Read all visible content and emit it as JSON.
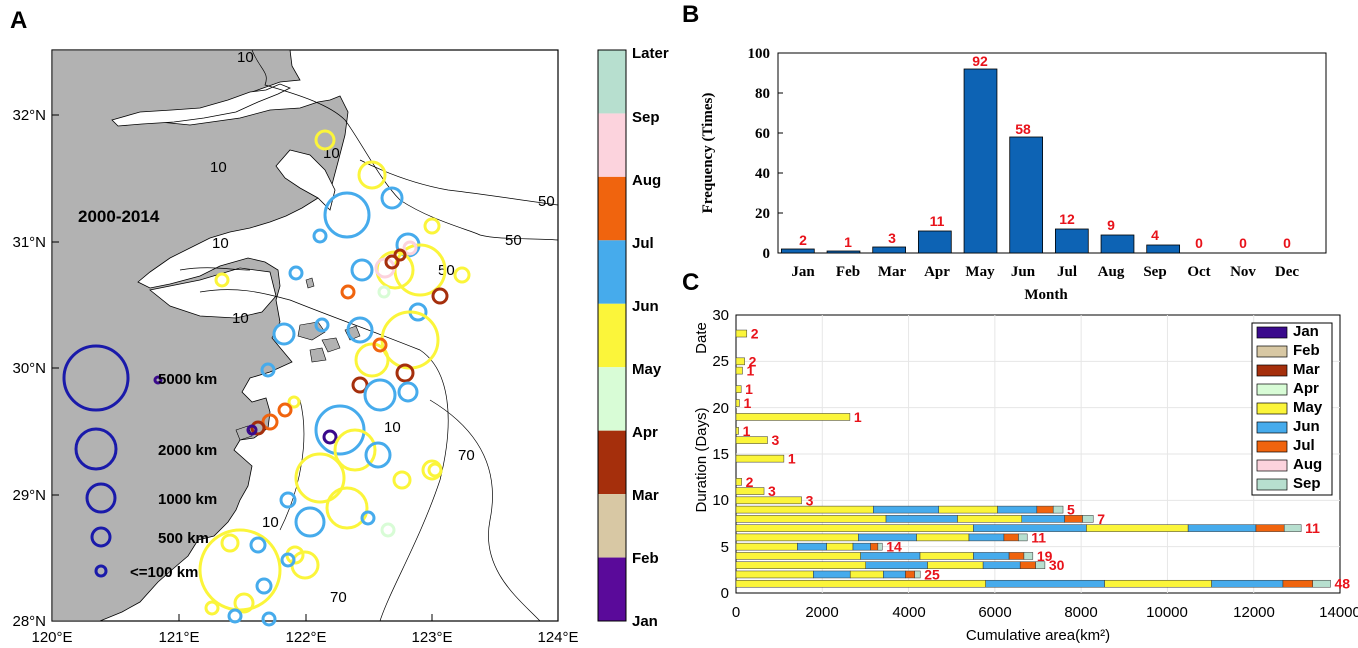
{
  "panel_labels": {
    "a": "A",
    "b": "B",
    "c": "C"
  },
  "chart_data": [
    {
      "type": "map",
      "period_label": "2000-2014",
      "lon_ticks": [
        "120°E",
        "121°E",
        "122°E",
        "123°E",
        "124°E"
      ],
      "lat_ticks": [
        "28°N",
        "29°N",
        "30°N",
        "31°N",
        "32°N"
      ],
      "xlim": [
        120,
        124
      ],
      "ylim": [
        28,
        32.5
      ],
      "contour_labels": [
        "10",
        "10",
        "10",
        "10",
        "10",
        "10",
        "50",
        "50",
        "50",
        "70",
        "70",
        "10"
      ],
      "size_legend": [
        "5000 km",
        "2000 km",
        "1000 km",
        "500 km",
        "<=100 km"
      ],
      "colorbar": {
        "labels": [
          "Later",
          "Sep",
          "Aug",
          "Jul",
          "Jun",
          "May",
          "Apr",
          "Mar",
          "Feb",
          "Jan"
        ],
        "colors": [
          "#b7dfcf",
          "#fcd3dd",
          "#f0640e",
          "#46abec",
          "#fbf53a",
          "#d8fcd6",
          "#a52f0c",
          "#d8c8a4",
          "#5a0a9a"
        ]
      }
    },
    {
      "type": "bar",
      "categories": [
        "Jan",
        "Feb",
        "Mar",
        "Apr",
        "May",
        "Jun",
        "Jul",
        "Aug",
        "Sep",
        "Oct",
        "Nov",
        "Dec"
      ],
      "values": [
        2,
        1,
        3,
        11,
        92,
        58,
        12,
        9,
        4,
        0,
        0,
        0
      ],
      "value_labels": [
        "2",
        "1",
        "3",
        "11",
        "92",
        "58",
        "12",
        "9",
        "4",
        "0",
        "0",
        "0"
      ],
      "xlabel": "Month",
      "ylabel": "Frequency (Times)",
      "ylim": [
        0,
        100
      ],
      "yticks": [
        "0",
        "20",
        "40",
        "60",
        "80",
        "100"
      ],
      "bar_color": "#0d63b4"
    },
    {
      "type": "bar-stacked-horizontal",
      "xlabel": "Cumulative area(km²)",
      "ylabel_main": "Duration (Days)",
      "ylabel_top": "Date",
      "xlim": [
        0,
        14000
      ],
      "ylim": [
        0,
        30
      ],
      "xticks": [
        "0",
        "2000",
        "4000",
        "6000",
        "8000",
        "10000",
        "12000",
        "14000"
      ],
      "yticks": [
        "0",
        "5",
        "10",
        "15",
        "20",
        "25",
        "30"
      ],
      "legend": [
        {
          "label": "Jan",
          "color": "#3a0a8c"
        },
        {
          "label": "Feb",
          "color": "#d8c8a4"
        },
        {
          "label": "Mar",
          "color": "#a52f0c"
        },
        {
          "label": "Apr",
          "color": "#d8fcd6"
        },
        {
          "label": "May",
          "color": "#fbf53a"
        },
        {
          "label": "Jun",
          "color": "#46abec"
        },
        {
          "label": "Jul",
          "color": "#f0640e"
        },
        {
          "label": "Aug",
          "color": "#fcd3dd"
        },
        {
          "label": "Sep",
          "color": "#b7dfcf"
        }
      ],
      "rows": [
        {
          "duration": 28,
          "total": 250,
          "count": "2"
        },
        {
          "duration": 25,
          "total": 200,
          "count": "2"
        },
        {
          "duration": 24,
          "total": 150,
          "count": "1"
        },
        {
          "duration": 22,
          "total": 120,
          "count": "1"
        },
        {
          "duration": 20.5,
          "total": 80,
          "count": "1"
        },
        {
          "duration": 19,
          "total": 2640,
          "count": "1"
        },
        {
          "duration": 17.5,
          "total": 60,
          "count": "1"
        },
        {
          "duration": 16.5,
          "total": 730,
          "count": "3"
        },
        {
          "duration": 14.5,
          "total": 1110,
          "count": "1"
        },
        {
          "duration": 12,
          "total": 130,
          "count": "2"
        },
        {
          "duration": 11,
          "total": 650,
          "count": "3"
        },
        {
          "duration": 10,
          "total": 1520,
          "count": "3"
        },
        {
          "duration": 9,
          "total": 7580,
          "count": "5"
        },
        {
          "duration": 8,
          "total": 8280,
          "count": "7"
        },
        {
          "duration": 7,
          "total": 13100,
          "count": "11"
        },
        {
          "duration": 6,
          "total": 6750,
          "count": "11"
        },
        {
          "duration": 5,
          "total": 3390,
          "count": "14"
        },
        {
          "duration": 4,
          "total": 6880,
          "count": "19"
        },
        {
          "duration": 3,
          "total": 7160,
          "count": "30"
        },
        {
          "duration": 2,
          "total": 4270,
          "count": "25"
        },
        {
          "duration": 1,
          "total": 13780,
          "count": "48"
        }
      ]
    }
  ]
}
